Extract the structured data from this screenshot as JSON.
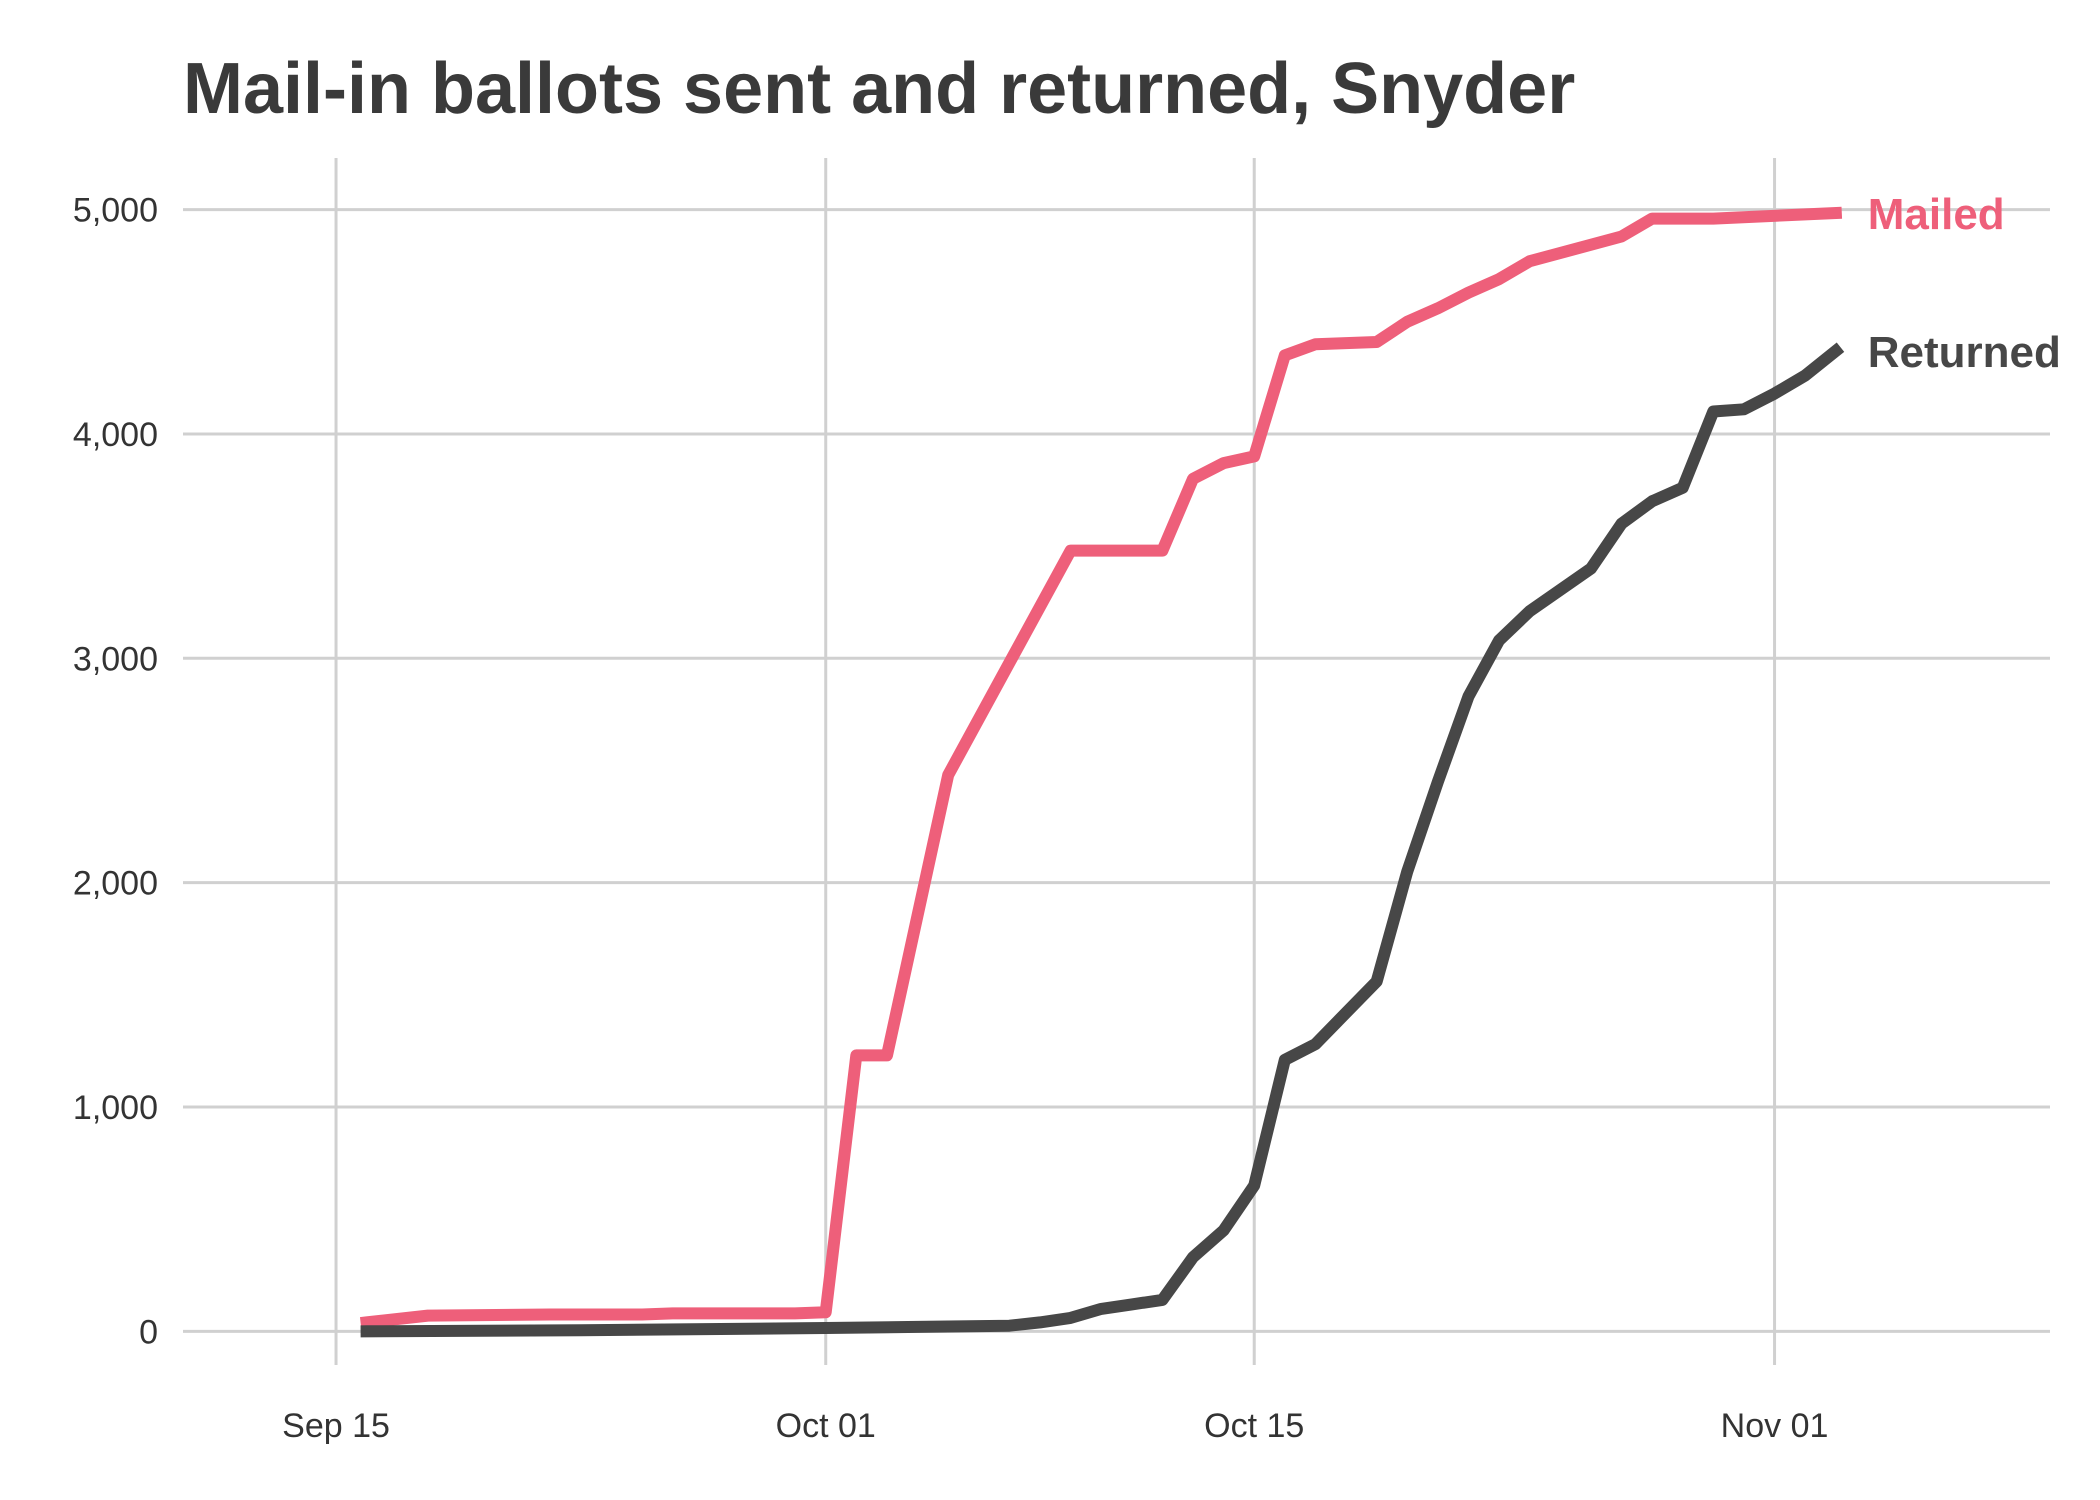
{
  "chart_data": {
    "type": "line",
    "title": "Mail-in ballots sent and returned, Snyder",
    "xlabel": "",
    "ylabel": "",
    "x_axis": {
      "type": "date",
      "range": [
        "2020-09-10",
        "2020-11-10"
      ],
      "ticks": [
        {
          "date": "2020-09-15",
          "label": "Sep 15"
        },
        {
          "date": "2020-10-01",
          "label": "Oct 01"
        },
        {
          "date": "2020-10-15",
          "label": "Oct 15"
        },
        {
          "date": "2020-11-01",
          "label": "Nov 01"
        }
      ]
    },
    "y_axis": {
      "range": [
        -150,
        5230
      ],
      "ticks": [
        {
          "value": 0,
          "label": "0"
        },
        {
          "value": 1000,
          "label": "1,000"
        },
        {
          "value": 2000,
          "label": "2,000"
        },
        {
          "value": 3000,
          "label": "3,000"
        },
        {
          "value": 4000,
          "label": "4,000"
        },
        {
          "value": 5000,
          "label": "5,000"
        }
      ]
    },
    "grid": true,
    "legend": "direct labels at line ends",
    "series": [
      {
        "name": "Mailed",
        "color": "#ee5f7a",
        "points": [
          [
            "2020-09-16",
            40
          ],
          [
            "2020-09-18",
            70
          ],
          [
            "2020-09-22",
            75
          ],
          [
            "2020-09-25",
            75
          ],
          [
            "2020-09-26",
            80
          ],
          [
            "2020-09-30",
            80
          ],
          [
            "2020-10-01",
            85
          ],
          [
            "2020-10-02",
            1230
          ],
          [
            "2020-10-03",
            1230
          ],
          [
            "2020-10-05",
            2480
          ],
          [
            "2020-10-07",
            2980
          ],
          [
            "2020-10-09",
            3480
          ],
          [
            "2020-10-12",
            3480
          ],
          [
            "2020-10-13",
            3800
          ],
          [
            "2020-10-14",
            3870
          ],
          [
            "2020-10-15",
            3900
          ],
          [
            "2020-10-16",
            4350
          ],
          [
            "2020-10-17",
            4400
          ],
          [
            "2020-10-19",
            4410
          ],
          [
            "2020-10-20",
            4500
          ],
          [
            "2020-10-21",
            4560
          ],
          [
            "2020-10-22",
            4630
          ],
          [
            "2020-10-23",
            4690
          ],
          [
            "2020-10-24",
            4770
          ],
          [
            "2020-10-27",
            4880
          ],
          [
            "2020-10-28",
            4960
          ],
          [
            "2020-10-30",
            4960
          ],
          [
            "2020-11-03",
            4985
          ]
        ]
      },
      {
        "name": "Returned",
        "color": "#474747",
        "points": [
          [
            "2020-09-16",
            0
          ],
          [
            "2020-09-23",
            5
          ],
          [
            "2020-10-01",
            15
          ],
          [
            "2020-10-04",
            20
          ],
          [
            "2020-10-07",
            25
          ],
          [
            "2020-10-08",
            40
          ],
          [
            "2020-10-09",
            60
          ],
          [
            "2020-10-10",
            100
          ],
          [
            "2020-10-11",
            120
          ],
          [
            "2020-10-12",
            140
          ],
          [
            "2020-10-13",
            330
          ],
          [
            "2020-10-14",
            450
          ],
          [
            "2020-10-15",
            650
          ],
          [
            "2020-10-16",
            1210
          ],
          [
            "2020-10-17",
            1280
          ],
          [
            "2020-10-18",
            1420
          ],
          [
            "2020-10-19",
            1560
          ],
          [
            "2020-10-20",
            2050
          ],
          [
            "2020-10-21",
            2450
          ],
          [
            "2020-10-22",
            2830
          ],
          [
            "2020-10-23",
            3080
          ],
          [
            "2020-10-24",
            3210
          ],
          [
            "2020-10-26",
            3400
          ],
          [
            "2020-10-27",
            3600
          ],
          [
            "2020-10-28",
            3700
          ],
          [
            "2020-10-29",
            3760
          ],
          [
            "2020-10-30",
            4100
          ],
          [
            "2020-10-31",
            4110
          ],
          [
            "2020-11-01",
            4180
          ],
          [
            "2020-11-02",
            4260
          ],
          [
            "2020-11-03",
            4370
          ]
        ]
      }
    ]
  }
}
